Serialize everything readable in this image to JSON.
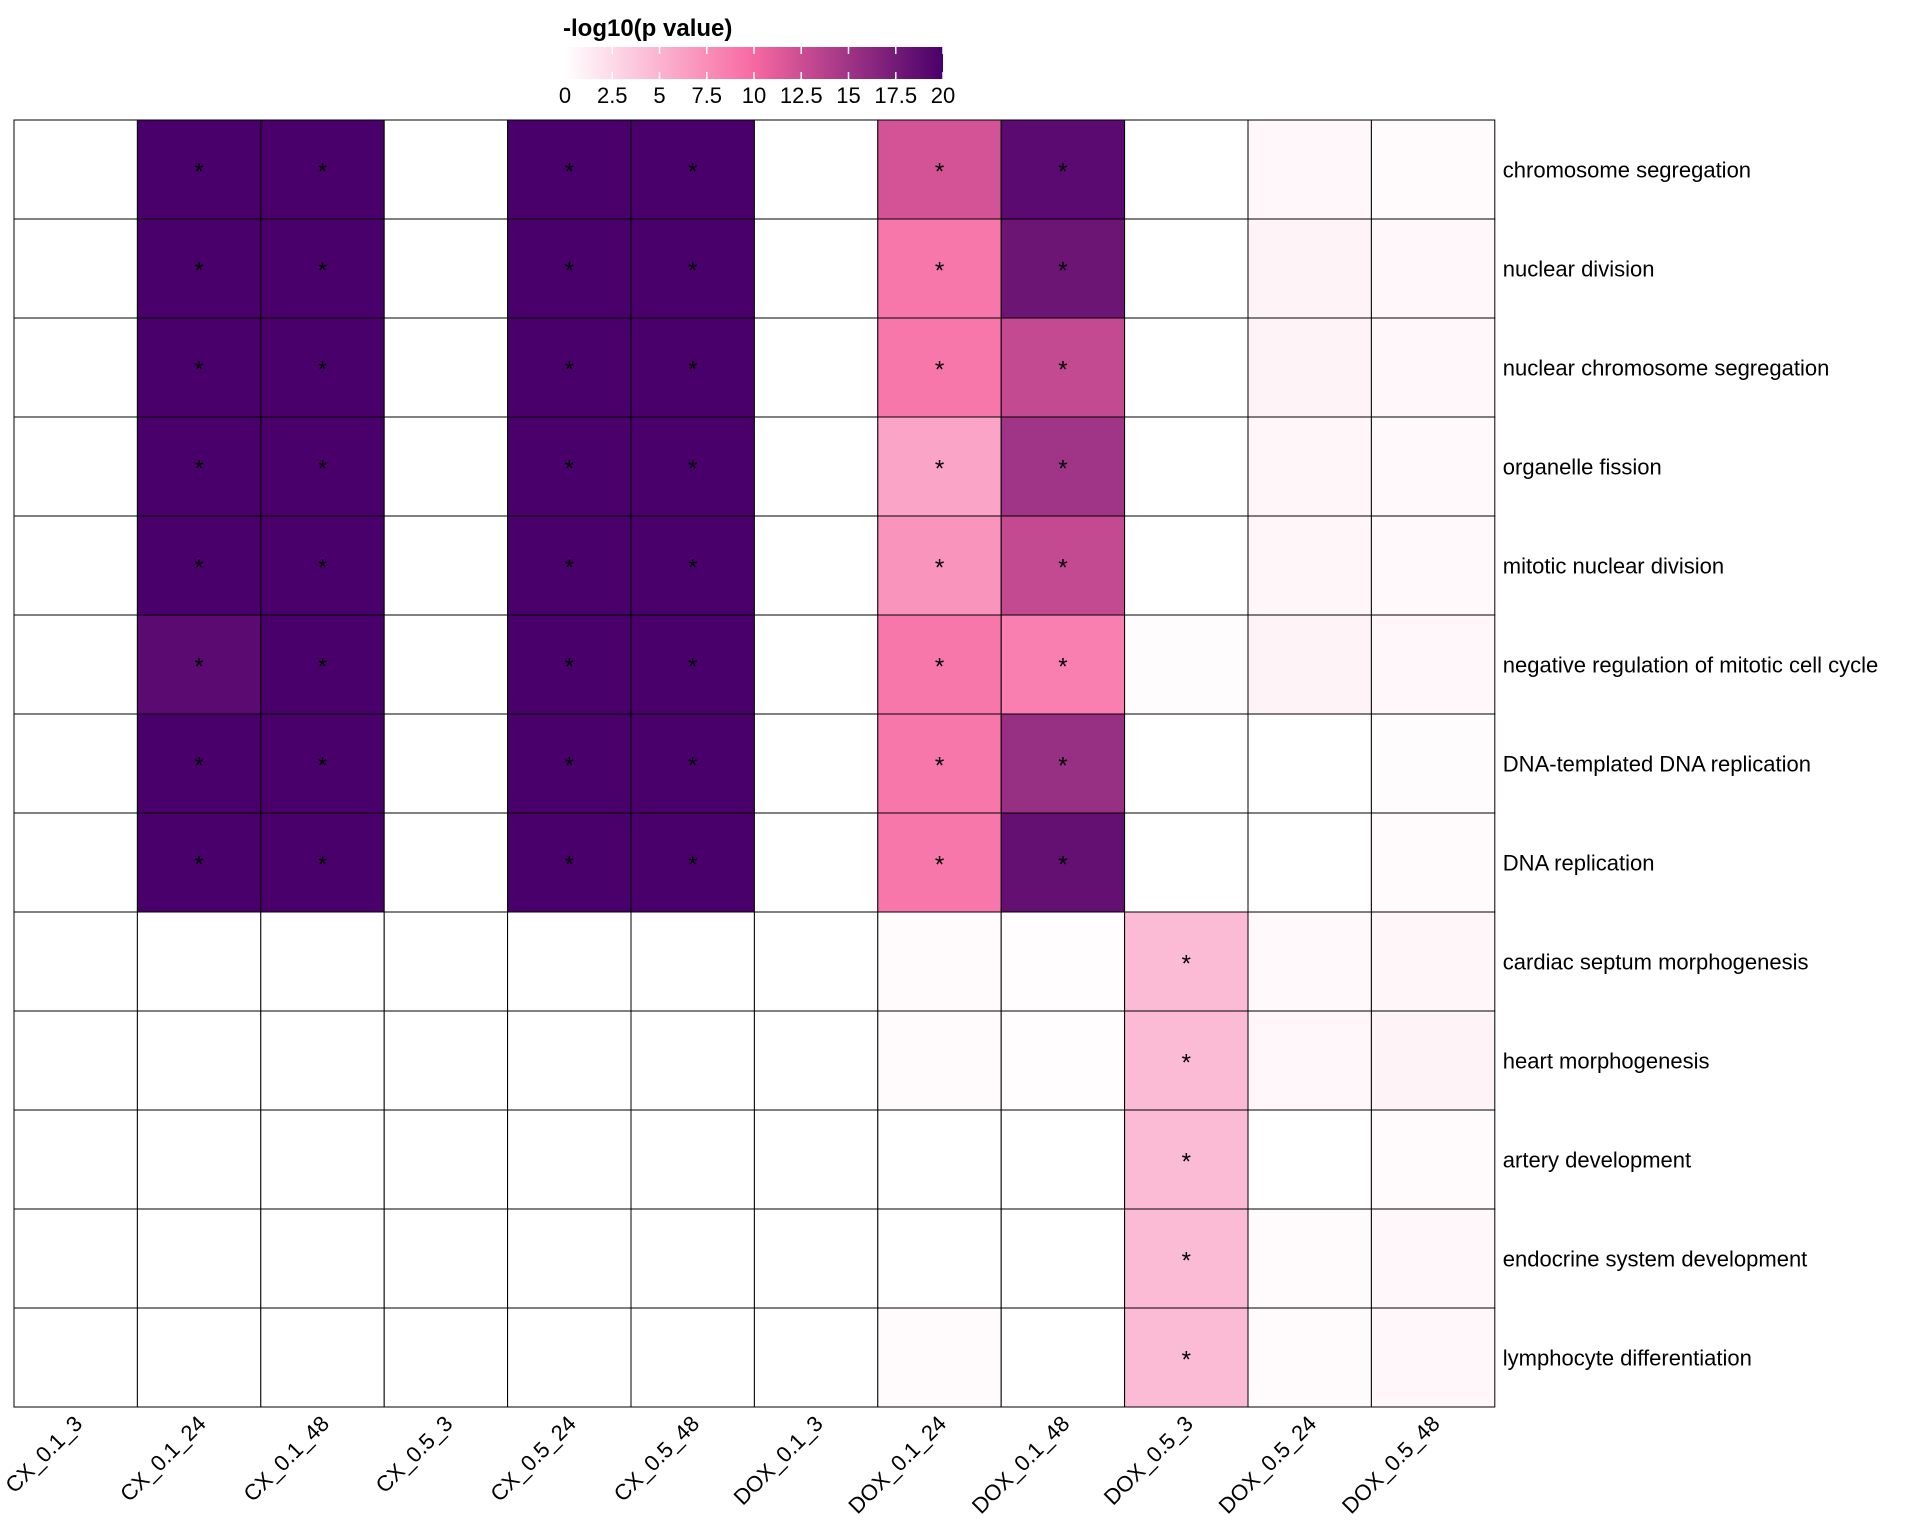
{
  "chart_data": {
    "type": "heatmap",
    "title": "",
    "xlabel": "",
    "ylabel": "",
    "legend": {
      "title": "-log10(p value)",
      "placement": "top",
      "range": [
        0,
        20
      ],
      "ticks": [
        "0",
        "2.5",
        "5",
        "7.5",
        "10",
        "12.5",
        "15",
        "17.5",
        "20"
      ],
      "colors": [
        "#ffffff",
        "#f768a1",
        "#49006a"
      ]
    },
    "columns": [
      "CX_0.1_3",
      "CX_0.1_24",
      "CX_0.1_48",
      "CX_0.5_3",
      "CX_0.5_24",
      "CX_0.5_48",
      "DOX_0.1_3",
      "DOX_0.1_24",
      "DOX_0.1_48",
      "DOX_0.5_3",
      "DOX_0.5_24",
      "DOX_0.5_48"
    ],
    "rows": [
      {
        "label": "chromosome segregation",
        "values": [
          0,
          20,
          20,
          0,
          20,
          20,
          0,
          12,
          19,
          0,
          0.5,
          0.3
        ],
        "sig": [
          false,
          true,
          true,
          false,
          true,
          true,
          false,
          true,
          true,
          false,
          false,
          false
        ]
      },
      {
        "label": "nuclear division",
        "values": [
          0,
          20,
          20,
          0,
          20,
          20,
          0,
          9,
          18,
          0,
          0.7,
          0.5
        ],
        "sig": [
          false,
          true,
          true,
          false,
          true,
          true,
          false,
          true,
          true,
          false,
          false,
          false
        ]
      },
      {
        "label": "nuclear chromosome segregation",
        "values": [
          0,
          20,
          20,
          0,
          20,
          20,
          0,
          9,
          13,
          0,
          0.7,
          0.5
        ],
        "sig": [
          false,
          true,
          true,
          false,
          true,
          true,
          false,
          true,
          true,
          false,
          false,
          false
        ]
      },
      {
        "label": "organelle fission",
        "values": [
          0,
          20,
          20,
          0,
          20,
          20,
          0,
          6,
          15,
          0,
          0.6,
          0.4
        ],
        "sig": [
          false,
          true,
          true,
          false,
          true,
          true,
          false,
          true,
          true,
          false,
          false,
          false
        ]
      },
      {
        "label": "mitotic nuclear division",
        "values": [
          0,
          20,
          20,
          0,
          20,
          20,
          0,
          7,
          13,
          0,
          0.6,
          0.4
        ],
        "sig": [
          false,
          true,
          true,
          false,
          true,
          true,
          false,
          true,
          true,
          false,
          false,
          false
        ]
      },
      {
        "label": "negative regulation of mitotic cell cycle",
        "values": [
          0,
          19,
          20,
          0,
          20,
          20,
          0,
          9,
          8.5,
          0.2,
          0.7,
          0.5
        ],
        "sig": [
          false,
          true,
          true,
          false,
          true,
          true,
          false,
          true,
          true,
          false,
          false,
          false
        ]
      },
      {
        "label": "DNA-templated DNA replication",
        "values": [
          0,
          20,
          20,
          0,
          20,
          20,
          0,
          9,
          15.5,
          0,
          0,
          0.2
        ],
        "sig": [
          false,
          true,
          true,
          false,
          true,
          true,
          false,
          true,
          true,
          false,
          false,
          false
        ]
      },
      {
        "label": "DNA replication",
        "values": [
          0,
          20,
          20,
          0,
          20,
          20,
          0,
          9,
          18.5,
          0,
          0,
          0.3
        ],
        "sig": [
          false,
          true,
          true,
          false,
          true,
          true,
          false,
          true,
          true,
          false,
          false,
          false
        ]
      },
      {
        "label": "cardiac septum morphogenesis",
        "values": [
          0,
          0,
          0,
          0,
          0,
          0,
          0,
          0.3,
          0.1,
          4.5,
          0.4,
          0.6
        ],
        "sig": [
          false,
          false,
          false,
          false,
          false,
          false,
          false,
          false,
          false,
          true,
          false,
          false
        ]
      },
      {
        "label": "heart morphogenesis",
        "values": [
          0,
          0,
          0,
          0,
          0,
          0,
          0,
          0.3,
          0.1,
          4.5,
          0.5,
          0.7
        ],
        "sig": [
          false,
          false,
          false,
          false,
          false,
          false,
          false,
          false,
          false,
          true,
          false,
          false
        ]
      },
      {
        "label": "artery development",
        "values": [
          0,
          0,
          0,
          0,
          0,
          0,
          0,
          0,
          0,
          4.5,
          0,
          0.3
        ],
        "sig": [
          false,
          false,
          false,
          false,
          false,
          false,
          false,
          false,
          false,
          true,
          false,
          false
        ]
      },
      {
        "label": "endocrine system development",
        "values": [
          0,
          0,
          0,
          0,
          0,
          0,
          0,
          0,
          0,
          4.5,
          0.3,
          0.5
        ],
        "sig": [
          false,
          false,
          false,
          false,
          false,
          false,
          false,
          false,
          false,
          true,
          false,
          false
        ]
      },
      {
        "label": "lymphocyte differentiation",
        "values": [
          0,
          0,
          0,
          0,
          0,
          0,
          0,
          0.3,
          0,
          4.5,
          0.3,
          0.5
        ],
        "sig": [
          false,
          false,
          false,
          false,
          false,
          false,
          false,
          false,
          false,
          true,
          false,
          false
        ]
      }
    ],
    "significance_marker": "*"
  }
}
